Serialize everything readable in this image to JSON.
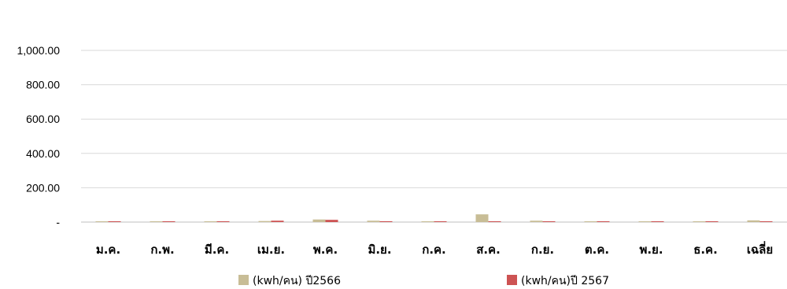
{
  "chart_data": {
    "type": "bar",
    "categories": [
      "ม.ค.",
      "ก.พ.",
      "มี.ค.",
      "เม.ย.",
      "พ.ค.",
      "มิ.ย.",
      "ก.ค.",
      "ส.ค.",
      "ก.ย.",
      "ต.ค.",
      "พ.ย.",
      "ธ.ค.",
      "เฉลี่ย"
    ],
    "series": [
      {
        "name": "(kwh/คน) ปี2566",
        "color": "#c8bd96",
        "values": [
          1,
          1,
          1,
          6,
          15,
          8,
          1,
          45,
          8,
          1,
          4,
          2,
          10
        ]
      },
      {
        "name": "(kwh/คน)ปี 2567",
        "color": "#cd5353",
        "values": [
          1,
          1,
          2,
          8,
          13,
          5,
          1,
          1,
          1,
          1,
          1,
          1,
          1
        ]
      }
    ],
    "y_tick_labels": [
      "-",
      "200.00",
      "400.00",
      "600.00",
      "800.00",
      "1,000.00"
    ],
    "ylim": [
      0,
      1000
    ],
    "grid": true,
    "legend": "bottom"
  }
}
